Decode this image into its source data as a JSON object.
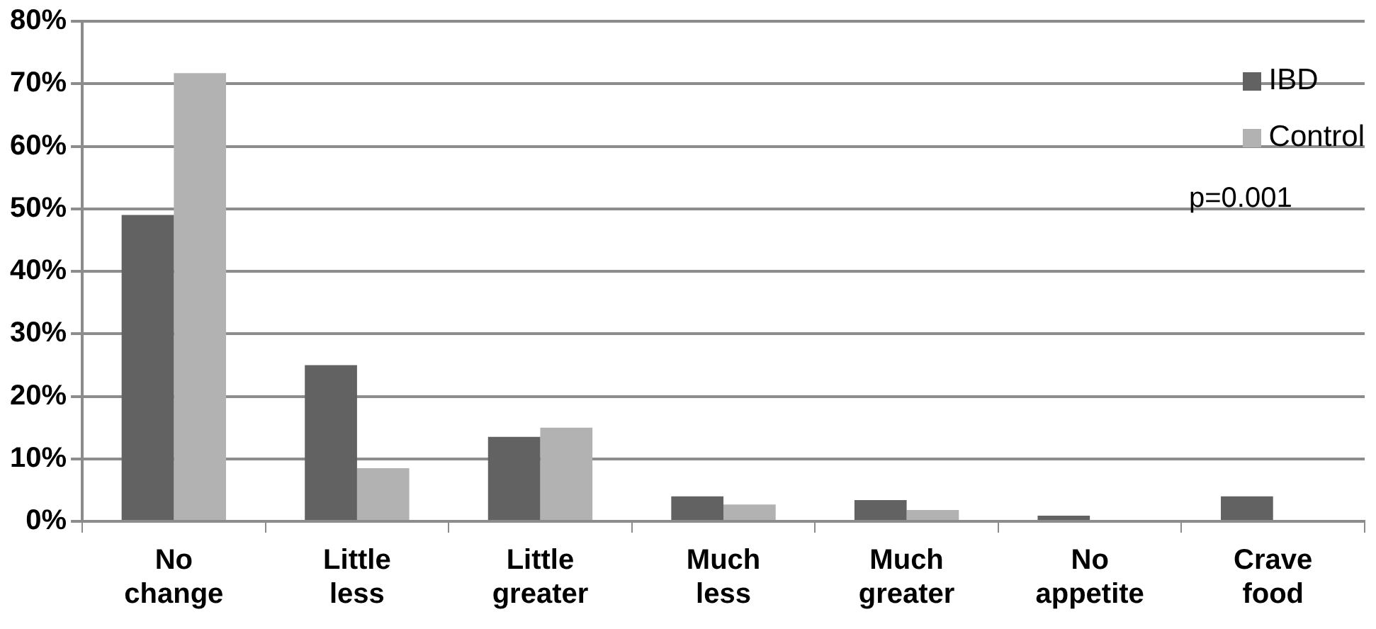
{
  "chart_data": {
    "type": "bar",
    "categories": [
      "No change",
      "Little less",
      "Little greater",
      "Much less",
      "Much greater",
      "No appetite",
      "Crave food"
    ],
    "series": [
      {
        "name": "IBD",
        "color": "#626262",
        "values": [
          49,
          25,
          13.5,
          4,
          3.4,
          0.9,
          4
        ]
      },
      {
        "name": "Control",
        "color": "#b2b2b2",
        "values": [
          71.7,
          8.5,
          15,
          2.7,
          1.8,
          0,
          0
        ]
      }
    ],
    "ylim": [
      0,
      80
    ],
    "yticks": [
      {
        "value": 0,
        "label": "0%"
      },
      {
        "value": 10,
        "label": "10%"
      },
      {
        "value": 20,
        "label": "20%"
      },
      {
        "value": 30,
        "label": "30%"
      },
      {
        "value": 40,
        "label": "40%"
      },
      {
        "value": 50,
        "label": "50%"
      },
      {
        "value": 60,
        "label": "60%"
      },
      {
        "value": 70,
        "label": "70%"
      },
      {
        "value": 80,
        "label": "80%"
      }
    ],
    "grid": "y",
    "legend": "top right",
    "annotations": [
      "p=0.001"
    ]
  }
}
